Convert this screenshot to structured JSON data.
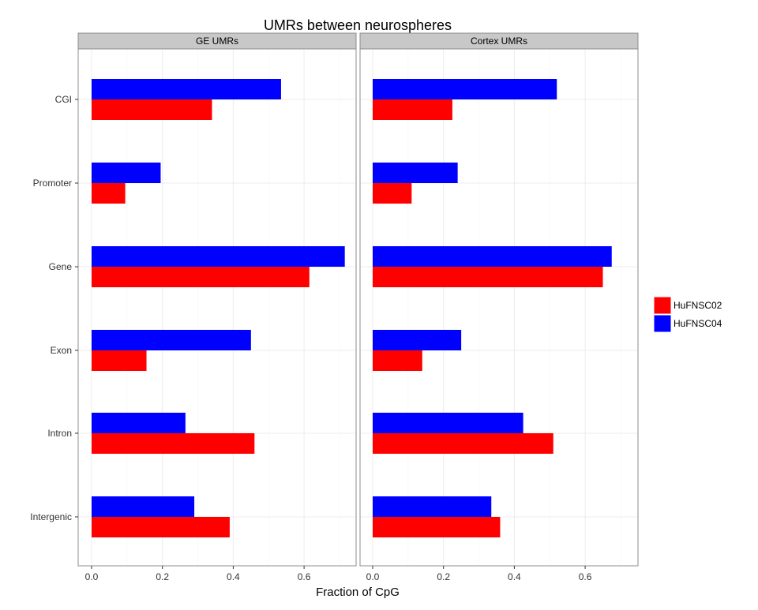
{
  "chart_data": {
    "type": "bar",
    "orientation": "horizontal",
    "title": "UMRs between neurospheres",
    "xlabel": "Fraction of CpG",
    "ylabel": "",
    "xlim": [
      -0.04,
      0.75
    ],
    "xticks": [
      0.0,
      0.2,
      0.4,
      0.6
    ],
    "xtick_labels": [
      "0.0",
      "0.2",
      "0.4",
      "0.6"
    ],
    "grid": true,
    "legend_position": "right",
    "categories": [
      "CGI",
      "Promoter",
      "Gene",
      "Exon",
      "Intron",
      "Intergenic"
    ],
    "series_colors": {
      "HuFNSC02": "#ff0000",
      "HuFNSC04": "#0000ff"
    },
    "facets": [
      {
        "title": "GE UMRs",
        "series": [
          {
            "name": "HuFNSC02",
            "values": [
              0.34,
              0.095,
              0.615,
              0.155,
              0.46,
              0.39
            ]
          },
          {
            "name": "HuFNSC04",
            "values": [
              0.535,
              0.195,
              0.715,
              0.45,
              0.265,
              0.29
            ]
          }
        ]
      },
      {
        "title": "Cortex UMRs",
        "series": [
          {
            "name": "HuFNSC02",
            "values": [
              0.225,
              0.11,
              0.65,
              0.14,
              0.51,
              0.36
            ]
          },
          {
            "name": "HuFNSC04",
            "values": [
              0.52,
              0.24,
              0.675,
              0.25,
              0.425,
              0.335
            ]
          }
        ]
      }
    ],
    "legend": [
      {
        "label": "HuFNSC02",
        "color": "#ff0000"
      },
      {
        "label": "HuFNSC04",
        "color": "#0000ff"
      }
    ]
  }
}
